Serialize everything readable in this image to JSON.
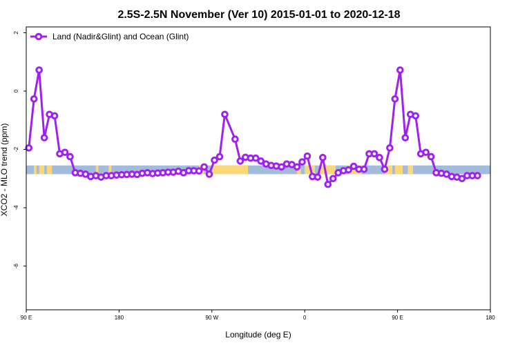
{
  "chart_data": {
    "type": "line",
    "title": "2.5S-2.5N November (Ver 10)   2015-01-01 to 2020-12-18",
    "xlabel": "Longitude (deg E)",
    "ylabel": "XCO2 - MLO trend (ppm)",
    "xlim": [
      90,
      450
    ],
    "ylim": [
      -7.5,
      2.2
    ],
    "x_ticks": [
      {
        "value": 90,
        "label": "90 E"
      },
      {
        "value": 162,
        "label": "180"
      },
      {
        "value": 234,
        "label": "90 W"
      },
      {
        "value": 306,
        "label": "0"
      },
      {
        "value": 378,
        "label": "90 E"
      },
      {
        "value": 450,
        "label": "180"
      }
    ],
    "y_ticks": [
      {
        "value": 2,
        "label": "2"
      },
      {
        "value": 0,
        "label": "0"
      },
      {
        "value": -2,
        "label": "-2"
      },
      {
        "value": -4,
        "label": "-4"
      },
      {
        "value": -6,
        "label": "-6"
      }
    ],
    "legend": {
      "position": "top-left"
    },
    "series": [
      {
        "name": "Land (Nadir&Glint) and Ocean (Glint)",
        "color": "#a020f0",
        "values": [
          [
            92,
            -1.95
          ],
          [
            96,
            -0.27
          ],
          [
            100,
            0.72
          ],
          [
            104,
            -1.6
          ],
          [
            108,
            -0.8
          ],
          [
            112,
            -0.85
          ],
          [
            116,
            -2.15
          ],
          [
            120,
            -2.1
          ],
          [
            124,
            -2.25
          ],
          [
            128,
            -2.8
          ],
          [
            132,
            -2.82
          ],
          [
            136,
            -2.85
          ],
          [
            140,
            -2.93
          ],
          [
            144,
            -2.9
          ],
          [
            148,
            -2.95
          ],
          [
            152,
            -2.9
          ],
          [
            156,
            -2.9
          ],
          [
            160,
            -2.88
          ],
          [
            164,
            -2.87
          ],
          [
            168,
            -2.86
          ],
          [
            172,
            -2.85
          ],
          [
            176,
            -2.86
          ],
          [
            180,
            -2.82
          ],
          [
            184,
            -2.8
          ],
          [
            188,
            -2.83
          ],
          [
            192,
            -2.81
          ],
          [
            196,
            -2.8
          ],
          [
            200,
            -2.78
          ],
          [
            204,
            -2.78
          ],
          [
            208,
            -2.75
          ],
          [
            212,
            -2.8
          ],
          [
            216,
            -2.73
          ],
          [
            220,
            -2.73
          ],
          [
            224,
            -2.74
          ],
          [
            228,
            -2.6
          ],
          [
            232,
            -2.85
          ],
          [
            236,
            -2.37
          ],
          [
            240,
            -2.25
          ],
          [
            244,
            -0.8
          ],
          [
            252,
            -1.65
          ],
          [
            256,
            -2.4
          ],
          [
            260,
            -2.27
          ],
          [
            264,
            -2.3
          ],
          [
            268,
            -2.3
          ],
          [
            272,
            -2.4
          ],
          [
            276,
            -2.5
          ],
          [
            280,
            -2.55
          ],
          [
            284,
            -2.57
          ],
          [
            288,
            -2.6
          ],
          [
            292,
            -2.5
          ],
          [
            296,
            -2.52
          ],
          [
            300,
            -2.6
          ],
          [
            304,
            -2.43
          ],
          [
            308,
            -2.23
          ],
          [
            312,
            -2.93
          ],
          [
            316,
            -2.95
          ],
          [
            320,
            -2.28
          ],
          [
            324,
            -3.2
          ],
          [
            328,
            -3.0
          ],
          [
            332,
            -2.8
          ],
          [
            336,
            -2.73
          ],
          [
            340,
            -2.7
          ],
          [
            344,
            -2.58
          ],
          [
            348,
            -2.68
          ],
          [
            352,
            -2.68
          ],
          [
            356,
            -2.15
          ],
          [
            360,
            -2.15
          ],
          [
            364,
            -2.28
          ],
          [
            368,
            -2.68
          ],
          [
            372,
            -1.95
          ],
          [
            376,
            -0.27
          ],
          [
            380,
            0.72
          ],
          [
            384,
            -1.6
          ],
          [
            388,
            -0.8
          ],
          [
            392,
            -0.85
          ],
          [
            396,
            -2.15
          ],
          [
            400,
            -2.1
          ],
          [
            404,
            -2.25
          ],
          [
            408,
            -2.8
          ],
          [
            412,
            -2.82
          ],
          [
            416,
            -2.85
          ],
          [
            420,
            -2.93
          ],
          [
            424,
            -2.95
          ],
          [
            428,
            -3.0
          ],
          [
            432,
            -2.9
          ],
          [
            436,
            -2.9
          ],
          [
            440,
            -2.9
          ]
        ]
      }
    ],
    "land_ocean_band": {
      "y_range": [
        -2.55,
        -2.85
      ],
      "ocean_color": "#a4bcdc",
      "land_color": "#f8d878",
      "land_segments": [
        [
          96,
          98
        ],
        [
          100,
          104
        ],
        [
          106,
          110
        ],
        [
          144,
          146
        ],
        [
          154,
          156
        ],
        [
          224,
          228
        ],
        [
          234,
          262
        ],
        [
          300,
          303
        ],
        [
          306,
          314
        ],
        [
          318,
          330
        ],
        [
          340,
          350
        ],
        [
          368,
          374
        ],
        [
          376,
          382
        ],
        [
          386,
          390
        ]
      ]
    }
  }
}
